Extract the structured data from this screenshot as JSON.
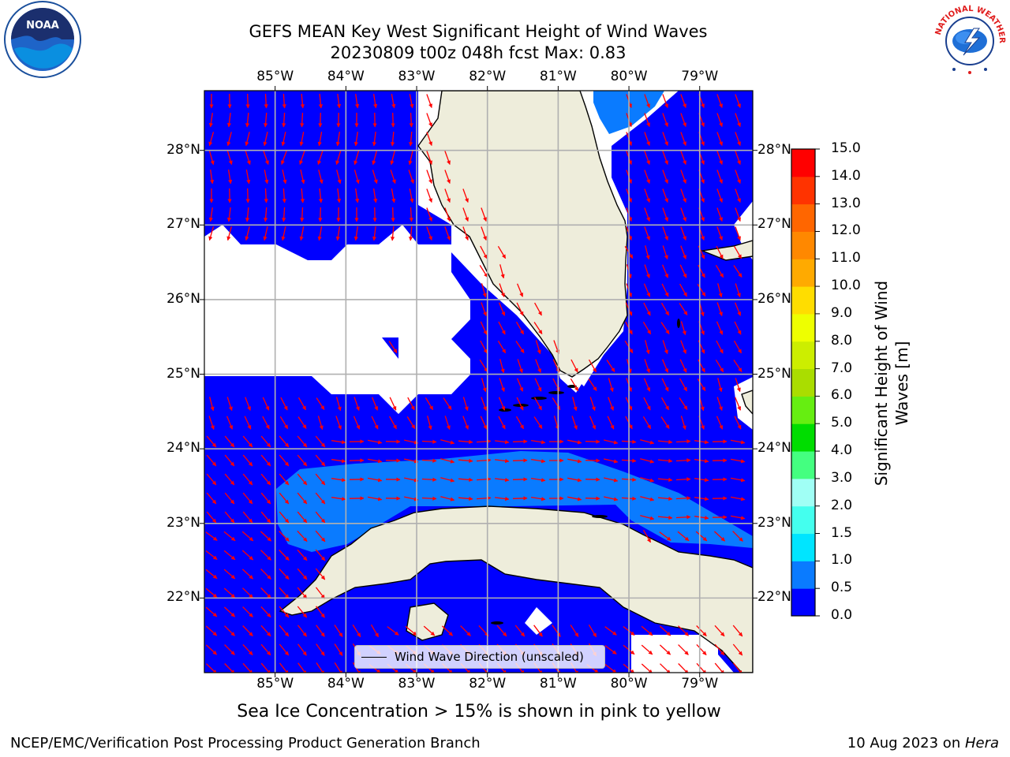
{
  "title_line1": "GEFS MEAN Key West Significant Height of Wind Waves",
  "title_line2": "20230809 t00z 048h fcst   Max: 0.83",
  "map": {
    "lon_labels": [
      "85°W",
      "84°W",
      "83°W",
      "82°W",
      "81°W",
      "80°W",
      "79°W"
    ],
    "lat_labels": [
      "28°N",
      "27°N",
      "26°N",
      "25°N",
      "24°N",
      "23°N",
      "22°N"
    ],
    "extent": {
      "lon": [
        -86.0,
        -78.25
      ],
      "lat": [
        21.0,
        28.8
      ]
    },
    "land_color": "#eeeddb",
    "open_water_color": "#0000ff",
    "wave_arrow_color": "#ff0000",
    "grid": true
  },
  "legend_label": "Wind Wave Direction (unscaled)",
  "colorbar": {
    "title": "Significant Height of Wind Waves [m]",
    "ticks": [
      "0.0",
      "0.5",
      "1.0",
      "1.5",
      "2.0",
      "3.0",
      "4.0",
      "5.0",
      "6.0",
      "7.0",
      "8.0",
      "9.0",
      "10.0",
      "11.0",
      "12.0",
      "13.0",
      "14.0",
      "15.0"
    ],
    "colors": [
      "#0000ff",
      "#0a7bff",
      "#00e5ff",
      "#44ffee",
      "#a0fff5",
      "#44ff80",
      "#00dd00",
      "#66ee11",
      "#aadd00",
      "#ccee00",
      "#eeff00",
      "#ffdd00",
      "#ffaa00",
      "#ff8800",
      "#ff6600",
      "#ff3300",
      "#ff0000"
    ]
  },
  "caption": "Sea Ice Concentration > 15% is shown in pink to yellow",
  "footer_left": "NCEP/EMC/Verification Post Processing Product Generation Branch",
  "footer_right_date": "10 Aug 2023 on ",
  "footer_right_host": "Hera",
  "logos": {
    "noaa_text": "NOAA",
    "nws_text": "NATIONAL WEATHER SERVICE"
  }
}
